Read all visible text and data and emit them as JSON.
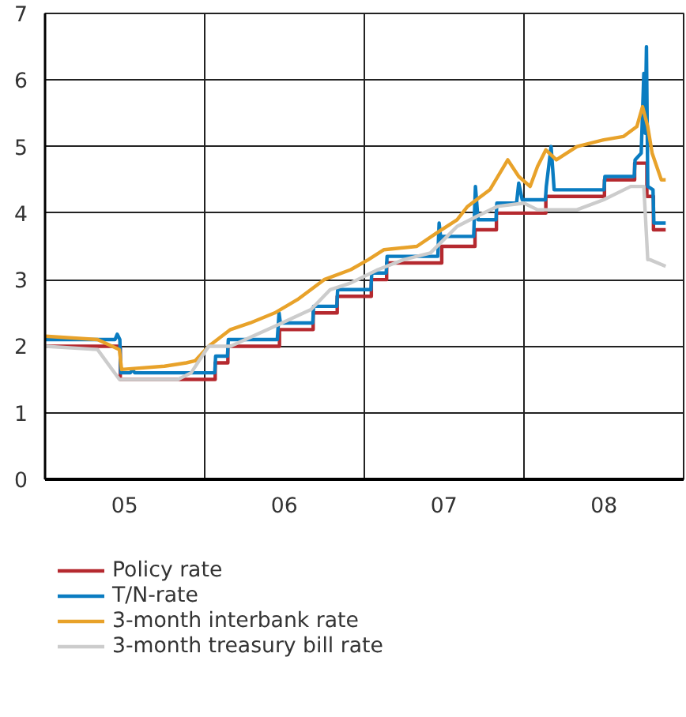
{
  "chart_data": {
    "type": "line",
    "xlim": [
      "2005-01-01",
      "2008-12-31"
    ],
    "ylim": [
      0,
      7
    ],
    "yticks": [
      0,
      1,
      2,
      3,
      4,
      5,
      6,
      7
    ],
    "xticks": [
      {
        "value": "2005-07-02",
        "label": "05"
      },
      {
        "value": "2006-01-01",
        "label": null
      },
      {
        "value": "2006-07-02",
        "label": "06"
      },
      {
        "value": "2007-01-01",
        "label": null
      },
      {
        "value": "2007-07-02",
        "label": "07"
      },
      {
        "value": "2008-01-01",
        "label": null
      },
      {
        "value": "2008-07-02",
        "label": "08"
      }
    ],
    "grid": true,
    "legend": "bottom",
    "series": [
      {
        "name": "Policy rate",
        "type": "step",
        "color": "#b5292f",
        "x": [
          "2005-01-01",
          "2005-06-22",
          "2006-01-25",
          "2006-02-23",
          "2006-06-21",
          "2006-09-06",
          "2006-10-31",
          "2007-01-17",
          "2007-02-21",
          "2007-06-27",
          "2007-09-11",
          "2007-10-30",
          "2008-02-20",
          "2008-07-03",
          "2008-09-10",
          "2008-10-08",
          "2008-10-23",
          "2008-11-20"
        ],
        "values": [
          2.0,
          1.5,
          1.75,
          2.0,
          2.25,
          2.5,
          2.75,
          3.0,
          3.25,
          3.5,
          3.75,
          4.0,
          4.25,
          4.5,
          4.75,
          4.25,
          3.75,
          3.75
        ]
      },
      {
        "name": "T/N-rate",
        "color": "#0a7cc1",
        "x": [
          "2005-01-01",
          "2005-06-10",
          "2005-06-15",
          "2005-06-21",
          "2005-06-23",
          "2005-07-15",
          "2005-07-20",
          "2005-07-25",
          "2006-01-24",
          "2006-01-26",
          "2006-02-22",
          "2006-02-24",
          "2006-06-16",
          "2006-06-20",
          "2006-06-23",
          "2006-09-05",
          "2006-09-07",
          "2006-10-30",
          "2006-11-01",
          "2007-01-16",
          "2007-01-18",
          "2007-02-20",
          "2007-02-22",
          "2007-06-18",
          "2007-06-21",
          "2007-06-25",
          "2007-06-28",
          "2007-09-08",
          "2007-09-12",
          "2007-09-18",
          "2007-10-29",
          "2007-10-31",
          "2007-12-15",
          "2007-12-20",
          "2007-12-28",
          "2008-02-19",
          "2008-02-21",
          "2008-03-03",
          "2008-03-10",
          "2008-07-02",
          "2008-07-04",
          "2008-09-09",
          "2008-09-11",
          "2008-09-25",
          "2008-10-01",
          "2008-10-04",
          "2008-10-07",
          "2008-10-10",
          "2008-10-22",
          "2008-10-24",
          "2008-11-20"
        ],
        "values": [
          2.1,
          2.1,
          2.18,
          2.1,
          1.6,
          1.6,
          1.65,
          1.6,
          1.6,
          1.85,
          1.85,
          2.1,
          2.1,
          2.5,
          2.35,
          2.35,
          2.6,
          2.6,
          2.85,
          2.85,
          3.1,
          3.1,
          3.35,
          3.35,
          3.85,
          3.6,
          3.65,
          3.65,
          4.4,
          3.9,
          3.9,
          4.15,
          4.15,
          4.45,
          4.2,
          4.2,
          4.4,
          5.0,
          4.35,
          4.35,
          4.55,
          4.55,
          4.8,
          4.9,
          6.1,
          5.2,
          6.5,
          4.4,
          4.35,
          3.85,
          3.85
        ]
      },
      {
        "name": "3-month interbank rate",
        "color": "#e8a22a",
        "x": [
          "2005-01-01",
          "2005-05-01",
          "2005-06-20",
          "2005-06-25",
          "2005-10-01",
          "2005-11-20",
          "2005-12-10",
          "2006-01-10",
          "2006-03-01",
          "2006-04-15",
          "2006-06-10",
          "2006-08-01",
          "2006-10-01",
          "2006-12-01",
          "2007-01-10",
          "2007-02-15",
          "2007-05-01",
          "2007-06-15",
          "2007-08-01",
          "2007-08-25",
          "2007-10-15",
          "2007-11-25",
          "2007-12-20",
          "2008-01-15",
          "2008-02-01",
          "2008-02-20",
          "2008-03-15",
          "2008-05-01",
          "2008-07-01",
          "2008-08-15",
          "2008-09-15",
          "2008-09-28",
          "2008-10-10",
          "2008-10-20",
          "2008-11-10",
          "2008-11-20"
        ],
        "values": [
          2.15,
          2.1,
          1.95,
          1.65,
          1.7,
          1.75,
          1.78,
          2.0,
          2.25,
          2.35,
          2.5,
          2.7,
          3.0,
          3.15,
          3.3,
          3.45,
          3.5,
          3.7,
          3.9,
          4.1,
          4.35,
          4.8,
          4.55,
          4.4,
          4.7,
          4.95,
          4.8,
          5.0,
          5.1,
          5.15,
          5.3,
          5.6,
          5.3,
          4.9,
          4.5,
          4.5
        ]
      },
      {
        "name": "3-month treasury bill rate",
        "color": "#cccccc",
        "x": [
          "2005-01-01",
          "2005-05-01",
          "2005-06-20",
          "2005-11-01",
          "2005-12-01",
          "2006-01-10",
          "2006-03-01",
          "2006-06-10",
          "2006-09-01",
          "2006-10-15",
          "2006-12-01",
          "2007-02-01",
          "2007-04-01",
          "2007-06-01",
          "2007-08-01",
          "2007-09-15",
          "2007-11-01",
          "2008-01-01",
          "2008-02-01",
          "2008-05-01",
          "2008-07-01",
          "2008-09-01",
          "2008-10-01",
          "2008-10-10",
          "2008-10-15",
          "2008-11-20"
        ],
        "values": [
          2.0,
          1.95,
          1.5,
          1.5,
          1.6,
          2.0,
          2.0,
          2.3,
          2.55,
          2.85,
          2.95,
          3.15,
          3.3,
          3.4,
          3.8,
          3.95,
          4.1,
          4.15,
          4.05,
          4.05,
          4.2,
          4.4,
          4.4,
          3.3,
          3.3,
          3.2
        ]
      }
    ]
  }
}
